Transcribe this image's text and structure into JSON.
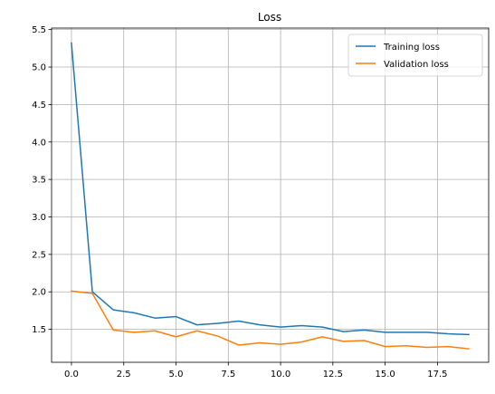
{
  "chart_data": {
    "type": "line",
    "title": "Loss",
    "xlabel": "",
    "ylabel": "",
    "xlim": [
      -0.95,
      19.95
    ],
    "ylim": [
      1.06,
      5.52
    ],
    "x_ticks": [
      0.0,
      2.5,
      5.0,
      7.5,
      10.0,
      12.5,
      15.0,
      17.5
    ],
    "x_tick_labels": [
      "0.0",
      "2.5",
      "5.0",
      "7.5",
      "10.0",
      "12.5",
      "15.0",
      "17.5"
    ],
    "y_ticks": [
      1.5,
      2.0,
      2.5,
      3.0,
      3.5,
      4.0,
      4.5,
      5.0,
      5.5
    ],
    "y_tick_labels": [
      "1.5",
      "2.0",
      "2.5",
      "3.0",
      "3.5",
      "4.0",
      "4.5",
      "5.0",
      "5.5"
    ],
    "grid": true,
    "legend_position": "top-right",
    "x": [
      0,
      1,
      2,
      3,
      4,
      5,
      6,
      7,
      8,
      9,
      10,
      11,
      12,
      13,
      14,
      15,
      16,
      17,
      18,
      19
    ],
    "series": [
      {
        "name": "Training loss",
        "color": "#1f77b4",
        "values": [
          5.32,
          2.0,
          1.76,
          1.72,
          1.65,
          1.67,
          1.56,
          1.58,
          1.61,
          1.56,
          1.53,
          1.55,
          1.53,
          1.47,
          1.49,
          1.46,
          1.46,
          1.46,
          1.44,
          1.43
        ]
      },
      {
        "name": "Validation loss",
        "color": "#ff7f0e",
        "values": [
          2.01,
          1.98,
          1.49,
          1.46,
          1.48,
          1.4,
          1.48,
          1.41,
          1.29,
          1.32,
          1.3,
          1.33,
          1.4,
          1.34,
          1.35,
          1.27,
          1.28,
          1.26,
          1.27,
          1.24
        ]
      }
    ]
  }
}
